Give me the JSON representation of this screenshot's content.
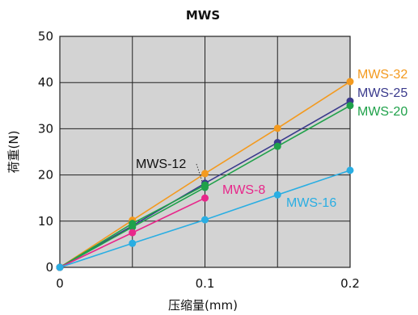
{
  "chart_data": {
    "type": "line",
    "title": "MWS",
    "xlabel": "压缩量(mm)",
    "ylabel": "荷重(N)",
    "xlim": [
      0,
      0.2
    ],
    "ylim": [
      0,
      50
    ],
    "x_ticks": [
      "0",
      "0.1",
      "0.2"
    ],
    "y_ticks": [
      "0",
      "10",
      "20",
      "30",
      "40",
      "50"
    ],
    "grid": true,
    "background_color": "#d3d3d3",
    "series": [
      {
        "name": "MWS-32",
        "color": "#f39a1f",
        "x": [
          0,
          0.05,
          0.1,
          0.15,
          0.2
        ],
        "y": [
          0,
          10.2,
          20.3,
          30.1,
          40.2
        ]
      },
      {
        "name": "MWS-25",
        "color": "#3a3a8c",
        "x": [
          0,
          0.05,
          0.1,
          0.15,
          0.2
        ],
        "y": [
          0,
          9.0,
          18.2,
          27.0,
          36.0
        ]
      },
      {
        "name": "MWS-20",
        "color": "#1fa14a",
        "x": [
          0,
          0.05,
          0.1,
          0.15,
          0.2
        ],
        "y": [
          0,
          8.7,
          17.3,
          26.2,
          35.0
        ]
      },
      {
        "name": "MWS-12",
        "color": "#1fa14a",
        "x": [
          0,
          0.05,
          0.1
        ],
        "y": [
          0,
          9.5,
          17.8
        ]
      },
      {
        "name": "MWS-8",
        "color": "#e8268a",
        "x": [
          0,
          0.05,
          0.1
        ],
        "y": [
          0,
          7.5,
          15.0
        ]
      },
      {
        "name": "MWS-16",
        "color": "#29aee3",
        "x": [
          0,
          0.05,
          0.1,
          0.15,
          0.2
        ],
        "y": [
          0,
          5.2,
          10.3,
          15.7,
          21.0
        ]
      }
    ]
  }
}
